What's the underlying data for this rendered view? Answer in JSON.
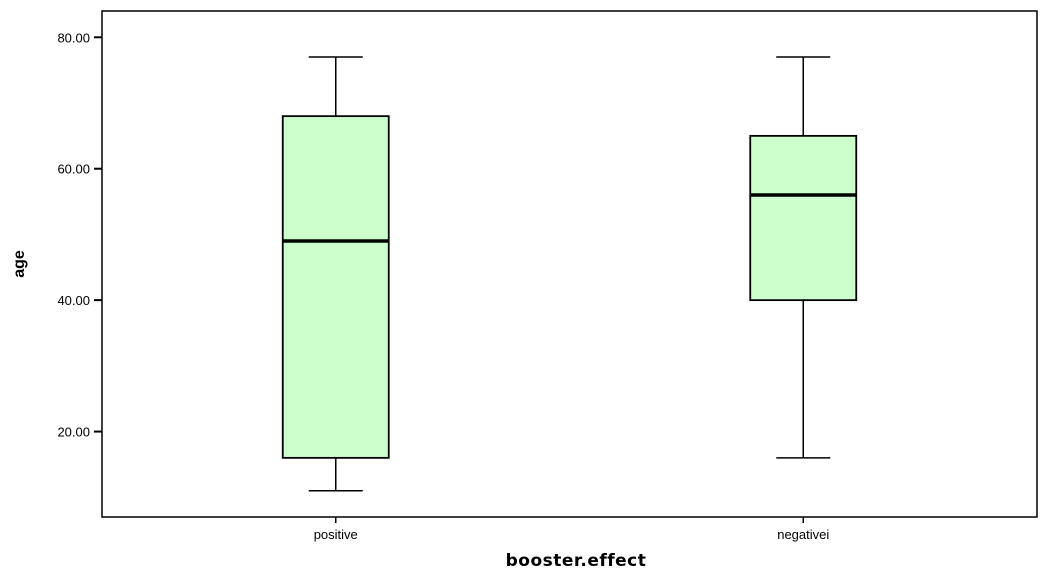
{
  "chart_data": {
    "type": "boxplot",
    "xlabel": "booster.effect",
    "ylabel": "age",
    "ylim": [
      7,
      84
    ],
    "yticks": [
      {
        "value": 20,
        "label": "20.00"
      },
      {
        "value": 40,
        "label": "40.00"
      },
      {
        "value": 60,
        "label": "60.00"
      },
      {
        "value": 80,
        "label": "80.00"
      }
    ],
    "categories": [
      "positive",
      "negativei"
    ],
    "boxes": [
      {
        "category": "positive",
        "min": 11,
        "q1": 16,
        "median": 49,
        "q3": 68,
        "max": 77
      },
      {
        "category": "negativei",
        "min": 16,
        "q1": 40,
        "median": 56,
        "q3": 65,
        "max": 77
      }
    ],
    "box_fill": "#ccffcc",
    "line_color": "#000000",
    "grid": false,
    "legend": "none"
  }
}
